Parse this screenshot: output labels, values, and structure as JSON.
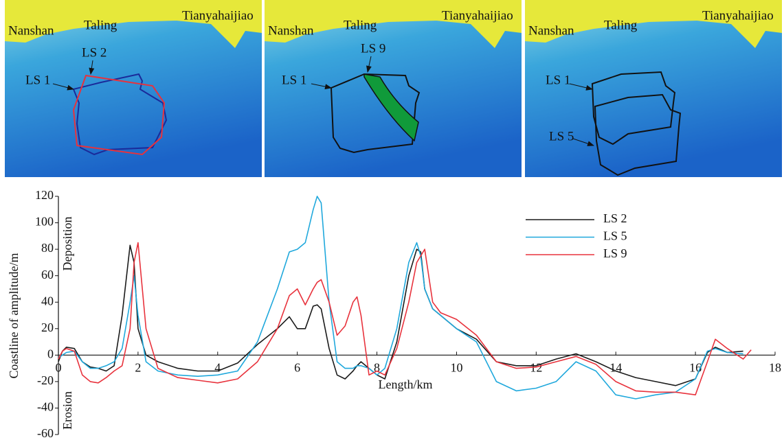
{
  "maps": [
    {
      "labels": [
        "Nanshan",
        "Taling",
        "Tianyahaijiao",
        "LS 1",
        "LS 2"
      ]
    },
    {
      "labels": [
        "Nanshan",
        "Taling",
        "Tianyahaijiao",
        "LS 1",
        "LS 9"
      ]
    },
    {
      "labels": [
        "Nanshan",
        "Taling",
        "Tianyahaijiao",
        "LS 1",
        "LS 5"
      ]
    }
  ],
  "chart_data": {
    "type": "line",
    "xlabel": "Length/km",
    "ylabel": "Coastline of amplitude/m",
    "annotations": [
      "Deposition",
      "Erosion"
    ],
    "x": [
      0,
      0.1,
      0.2,
      0.4,
      0.6,
      0.8,
      1.0,
      1.2,
      1.4,
      1.6,
      1.8,
      1.9,
      2.0,
      2.2,
      2.5,
      3,
      3.5,
      4,
      4.5,
      5,
      5.5,
      5.8,
      6.0,
      6.2,
      6.4,
      6.5,
      6.6,
      6.8,
      7.0,
      7.2,
      7.4,
      7.5,
      7.6,
      7.8,
      8.0,
      8.2,
      8.5,
      8.8,
      9.0,
      9.1,
      9.2,
      9.4,
      9.6,
      10,
      10.5,
      11,
      11.5,
      12,
      12.5,
      13,
      13.5,
      14,
      14.5,
      15,
      15.5,
      16,
      16.3,
      16.5,
      16.8,
      17.2,
      17.4
    ],
    "series": [
      {
        "name": "LS 2",
        "color": "#1a1a1a",
        "values": [
          -5,
          3,
          6,
          5,
          -5,
          -9,
          -10,
          -12,
          -8,
          30,
          83,
          70,
          20,
          0,
          -5,
          -10,
          -12,
          -12,
          -6,
          8,
          20,
          29,
          20,
          20,
          37,
          38,
          35,
          5,
          -15,
          -18,
          -12,
          -8,
          -5,
          -10,
          -15,
          -18,
          10,
          60,
          80,
          78,
          50,
          35,
          30,
          20,
          12,
          -5,
          -8,
          -8,
          -3,
          1,
          -5,
          -12,
          -17,
          -20,
          -23,
          -18,
          2,
          6,
          2,
          3,
          null
        ]
      },
      {
        "name": "LS 5",
        "color": "#1fa8dc",
        "values": [
          -2,
          0,
          2,
          3,
          -5,
          -10,
          -10,
          -8,
          -5,
          5,
          40,
          60,
          30,
          -5,
          -12,
          -15,
          -16,
          -15,
          -12,
          10,
          50,
          78,
          80,
          85,
          110,
          120,
          115,
          40,
          -5,
          -10,
          -10,
          -8,
          -8,
          -10,
          -15,
          -10,
          20,
          70,
          85,
          75,
          50,
          35,
          30,
          20,
          10,
          -20,
          -27,
          -25,
          -20,
          -5,
          -12,
          -30,
          -33,
          -30,
          -28,
          -18,
          3,
          5,
          2,
          1,
          null
        ]
      },
      {
        "name": "LS 9",
        "color": "#e8323c",
        "values": [
          -3,
          3,
          5,
          3,
          -15,
          -20,
          -21,
          -17,
          -12,
          -8,
          20,
          70,
          85,
          20,
          -10,
          -17,
          -19,
          -21,
          -18,
          -5,
          20,
          45,
          50,
          38,
          50,
          55,
          57,
          40,
          15,
          22,
          40,
          44,
          30,
          -15,
          -12,
          -15,
          5,
          40,
          70,
          75,
          80,
          40,
          32,
          27,
          15,
          -5,
          -10,
          -9,
          -5,
          -1,
          -7,
          -20,
          -27,
          -28,
          -28,
          -30,
          -5,
          12,
          5,
          -3,
          4
        ]
      }
    ],
    "xlim": [
      0,
      18
    ],
    "xticks": [
      0,
      2,
      4,
      6,
      8,
      10,
      12,
      14,
      16,
      18
    ],
    "ylim": [
      -60,
      120
    ],
    "yticks": [
      -60,
      -40,
      -20,
      0,
      20,
      40,
      60,
      80,
      100,
      120
    ],
    "legend": "upper right"
  }
}
